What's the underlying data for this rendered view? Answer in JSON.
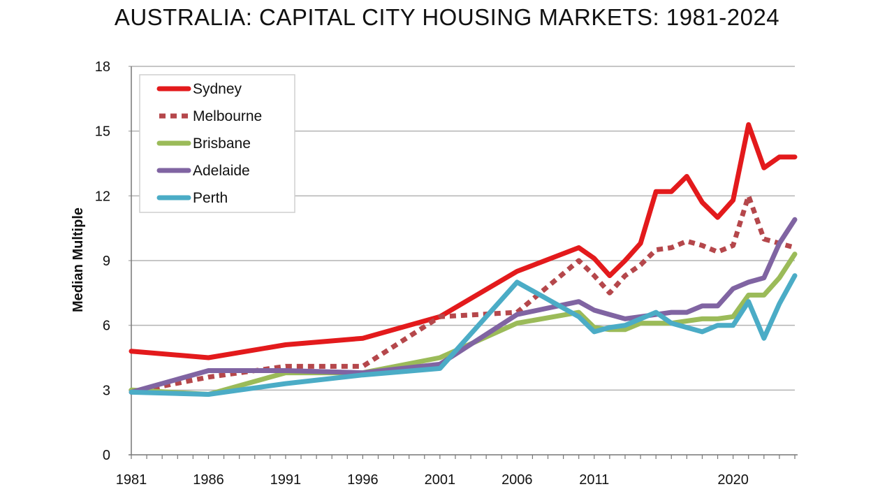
{
  "chart_data": {
    "type": "line",
    "title": "AUSTRALIA: CAPITAL CITY HOUSING MARKETS: 1981-2024",
    "ylabel": "Median Multiple",
    "xlabel": "",
    "ylim": [
      0,
      18
    ],
    "yticks": [
      0,
      3,
      6,
      9,
      12,
      15,
      18
    ],
    "xlim": [
      1981,
      2024
    ],
    "xtick_labels": [
      "1981",
      "1986",
      "1991",
      "1996",
      "2001",
      "2006",
      "2011",
      "2020"
    ],
    "grid": "horizontal",
    "legend_position": "top-left",
    "series": [
      {
        "name": "Sydney",
        "color": "#e31a1c",
        "style": "solid",
        "points": [
          [
            1981,
            4.8
          ],
          [
            1986,
            4.5
          ],
          [
            1991,
            5.1
          ],
          [
            1996,
            5.4
          ],
          [
            2001,
            6.4
          ],
          [
            2006,
            8.5
          ],
          [
            2010,
            9.6
          ],
          [
            2011,
            9.1
          ],
          [
            2012,
            8.3
          ],
          [
            2013,
            9.0
          ],
          [
            2014,
            9.8
          ],
          [
            2015,
            12.2
          ],
          [
            2016,
            12.2
          ],
          [
            2017,
            12.9
          ],
          [
            2018,
            11.7
          ],
          [
            2019,
            11.0
          ],
          [
            2020,
            11.8
          ],
          [
            2021,
            15.3
          ],
          [
            2022,
            13.3
          ],
          [
            2023,
            13.8
          ],
          [
            2024,
            13.8
          ]
        ]
      },
      {
        "name": "Melbourne",
        "color": "#b5474b",
        "style": "dotted",
        "points": [
          [
            1981,
            2.9
          ],
          [
            1986,
            3.6
          ],
          [
            1991,
            4.1
          ],
          [
            1996,
            4.1
          ],
          [
            2001,
            6.4
          ],
          [
            2006,
            6.6
          ],
          [
            2010,
            9.0
          ],
          [
            2011,
            8.3
          ],
          [
            2012,
            7.5
          ],
          [
            2013,
            8.3
          ],
          [
            2014,
            8.8
          ],
          [
            2015,
            9.5
          ],
          [
            2016,
            9.6
          ],
          [
            2017,
            9.9
          ],
          [
            2018,
            9.7
          ],
          [
            2019,
            9.4
          ],
          [
            2020,
            9.7
          ],
          [
            2021,
            12.0
          ],
          [
            2022,
            10.0
          ],
          [
            2023,
            9.8
          ],
          [
            2024,
            9.6
          ]
        ]
      },
      {
        "name": "Brisbane",
        "color": "#9bbb59",
        "style": "solid",
        "points": [
          [
            1981,
            3.0
          ],
          [
            1986,
            2.8
          ],
          [
            1991,
            3.8
          ],
          [
            1996,
            3.8
          ],
          [
            2001,
            4.5
          ],
          [
            2006,
            6.1
          ],
          [
            2010,
            6.6
          ],
          [
            2011,
            5.9
          ],
          [
            2012,
            5.8
          ],
          [
            2013,
            5.8
          ],
          [
            2014,
            6.1
          ],
          [
            2015,
            6.1
          ],
          [
            2016,
            6.1
          ],
          [
            2017,
            6.2
          ],
          [
            2018,
            6.3
          ],
          [
            2019,
            6.3
          ],
          [
            2020,
            6.4
          ],
          [
            2021,
            7.4
          ],
          [
            2022,
            7.4
          ],
          [
            2023,
            8.2
          ],
          [
            2024,
            9.3
          ]
        ]
      },
      {
        "name": "Adelaide",
        "color": "#8064a2",
        "style": "solid",
        "points": [
          [
            1981,
            2.9
          ],
          [
            1986,
            3.9
          ],
          [
            1991,
            3.9
          ],
          [
            1996,
            3.8
          ],
          [
            2001,
            4.2
          ],
          [
            2006,
            6.5
          ],
          [
            2010,
            7.1
          ],
          [
            2011,
            6.7
          ],
          [
            2012,
            6.5
          ],
          [
            2013,
            6.3
          ],
          [
            2014,
            6.4
          ],
          [
            2015,
            6.5
          ],
          [
            2016,
            6.6
          ],
          [
            2017,
            6.6
          ],
          [
            2018,
            6.9
          ],
          [
            2019,
            6.9
          ],
          [
            2020,
            7.7
          ],
          [
            2021,
            8.0
          ],
          [
            2022,
            8.2
          ],
          [
            2023,
            9.8
          ],
          [
            2024,
            10.9
          ]
        ]
      },
      {
        "name": "Perth",
        "color": "#4bacc6",
        "style": "solid",
        "points": [
          [
            1981,
            2.9
          ],
          [
            1986,
            2.8
          ],
          [
            1991,
            3.3
          ],
          [
            1996,
            3.7
          ],
          [
            2001,
            4.0
          ],
          [
            2006,
            8.0
          ],
          [
            2010,
            6.4
          ],
          [
            2011,
            5.7
          ],
          [
            2012,
            5.9
          ],
          [
            2013,
            6.0
          ],
          [
            2014,
            6.3
          ],
          [
            2015,
            6.6
          ],
          [
            2016,
            6.1
          ],
          [
            2017,
            5.9
          ],
          [
            2018,
            5.7
          ],
          [
            2019,
            6.0
          ],
          [
            2020,
            6.0
          ],
          [
            2021,
            7.1
          ],
          [
            2022,
            5.4
          ],
          [
            2023,
            7.0
          ],
          [
            2024,
            8.3
          ]
        ]
      }
    ]
  }
}
